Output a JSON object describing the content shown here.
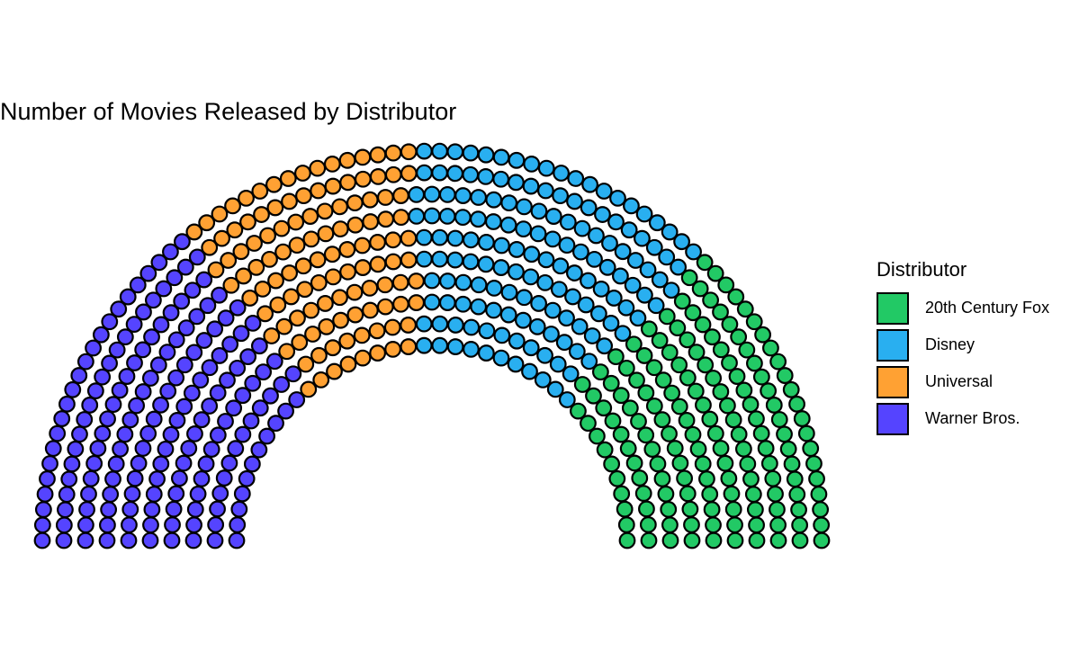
{
  "chart_data": {
    "type": "parliament",
    "title": "Number of Movies Released by Distributor",
    "legend": {
      "title": "Distributor",
      "placement": "right",
      "entries": [
        "20th Century Fox",
        "Disney",
        "Universal",
        "Warner Bros."
      ]
    },
    "categories": [
      "Warner Bros.",
      "Universal",
      "Disney",
      "20th Century Fox"
    ],
    "series": [
      {
        "name": "Warner Bros.",
        "value": 172,
        "color": "#5544FF"
      },
      {
        "name": "Universal",
        "value": 118,
        "color": "#FFA133"
      },
      {
        "name": "Disney",
        "value": 154,
        "color": "#29AFF0"
      },
      {
        "name": "20th Century Fox",
        "value": 156,
        "color": "#22C965"
      }
    ],
    "rows": 10,
    "grid": false
  }
}
